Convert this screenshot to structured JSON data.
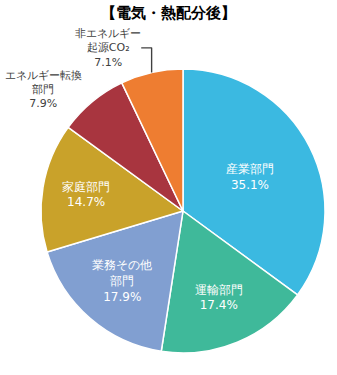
{
  "chart_data": {
    "type": "pie",
    "title": "【電気・熱配分後】",
    "categories": [
      "産業部門",
      "運輸部門",
      "業務その他部門",
      "家庭部門",
      "エネルギー転換部門",
      "非エネルギー起源CO₂"
    ],
    "values": [
      35.1,
      17.4,
      17.9,
      14.7,
      7.9,
      7.1
    ],
    "value_labels": [
      "35.1%",
      "17.4%",
      "17.9%",
      "14.7%",
      "7.9%",
      "7.1%"
    ],
    "colors": [
      "#3bb9e1",
      "#3fb99a",
      "#819fd1",
      "#c9a22a",
      "#a8353f",
      "#ee7d31"
    ],
    "data_labels": true
  }
}
